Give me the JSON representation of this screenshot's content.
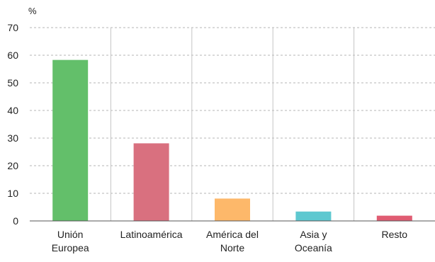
{
  "chart_data": {
    "type": "bar",
    "title": "",
    "xlabel": "",
    "ylabel": "%",
    "ylim": [
      0,
      70
    ],
    "yticks": [
      0,
      10,
      20,
      30,
      40,
      50,
      60,
      70
    ],
    "grid": true,
    "legend": "none",
    "categories": [
      [
        "Unión",
        "Europea"
      ],
      [
        "Latinoamérica"
      ],
      [
        "América del",
        "Norte"
      ],
      [
        "Asia y",
        "Oceanía"
      ],
      [
        "Resto"
      ]
    ],
    "values": [
      58.3,
      28.1,
      8.1,
      3.4,
      1.9
    ],
    "colors": [
      "#63bf6a",
      "#d9707f",
      "#fdb86a",
      "#5ec8d0",
      "#e05c72"
    ]
  }
}
